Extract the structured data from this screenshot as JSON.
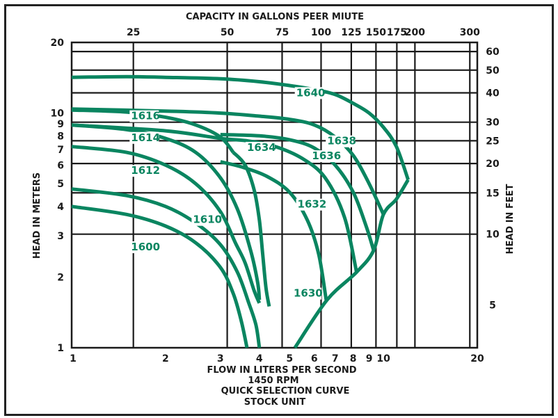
{
  "chart_data": {
    "type": "line",
    "title": "QUICK SELECTION CURVE",
    "subtitle": [
      "1450 RPM",
      "STOCK UNIT"
    ],
    "xlabel": "FLOW IN LITERS PER SECOND",
    "x2label": "CAPACITY IN GALLONS PEER MIUTE",
    "ylabel": "HEAD IN METERS",
    "y2label": "HEAD IN FEET",
    "xscale": "log",
    "yscale": "log",
    "xlim": [
      1,
      20
    ],
    "ylim": [
      1,
      20
    ],
    "grid": true,
    "x_ticks": [
      {
        "v": 1,
        "label": "1"
      },
      {
        "v": 2,
        "label": "2"
      },
      {
        "v": 3,
        "label": "3"
      },
      {
        "v": 4,
        "label": "4"
      },
      {
        "v": 5,
        "label": "5"
      },
      {
        "v": 6,
        "label": "6"
      },
      {
        "v": 7,
        "label": "7"
      },
      {
        "v": 8,
        "label": "8"
      },
      {
        "v": 9,
        "label": "9"
      },
      {
        "v": 10,
        "label": "10"
      },
      {
        "v": 20,
        "label": "20"
      }
    ],
    "x2_ticks_gpm": [
      {
        "v": 25,
        "label": "25"
      },
      {
        "v": 50,
        "label": "50"
      },
      {
        "v": 75,
        "label": "75"
      },
      {
        "v": 100,
        "label": "100"
      },
      {
        "v": 125,
        "label": "125"
      },
      {
        "v": 150,
        "label": "150"
      },
      {
        "v": 175,
        "label": "175"
      },
      {
        "v": 200,
        "label": "200"
      },
      {
        "v": 300,
        "label": "300"
      }
    ],
    "y_ticks": [
      {
        "v": 1,
        "label": "1"
      },
      {
        "v": 2,
        "label": "2"
      },
      {
        "v": 3,
        "label": "3"
      },
      {
        "v": 4,
        "label": "4"
      },
      {
        "v": 5,
        "label": "5"
      },
      {
        "v": 6,
        "label": "6"
      },
      {
        "v": 7,
        "label": "7"
      },
      {
        "v": 8,
        "label": "8"
      },
      {
        "v": 9,
        "label": "9"
      },
      {
        "v": 10,
        "label": "10"
      },
      {
        "v": 20,
        "label": "20"
      }
    ],
    "y2_ticks_ft": [
      {
        "v": 5,
        "label": "5"
      },
      {
        "v": 10,
        "label": "10"
      },
      {
        "v": 15,
        "label": "15"
      },
      {
        "v": 20,
        "label": "20"
      },
      {
        "v": 25,
        "label": "25"
      },
      {
        "v": 30,
        "label": "30"
      },
      {
        "v": 40,
        "label": "40"
      },
      {
        "v": 50,
        "label": "50"
      },
      {
        "v": 60,
        "label": "60"
      }
    ],
    "series": [
      {
        "name": "1600",
        "points": [
          [
            1.0,
            4.0
          ],
          [
            1.5,
            3.7
          ],
          [
            2.0,
            3.3
          ],
          [
            2.5,
            2.8
          ],
          [
            3.0,
            2.2
          ],
          [
            3.3,
            1.7
          ],
          [
            3.5,
            1.3
          ],
          [
            3.65,
            1.0
          ]
        ]
      },
      {
        "name": "1610",
        "points": [
          [
            1.0,
            4.75
          ],
          [
            1.5,
            4.45
          ],
          [
            2.0,
            4.0
          ],
          [
            2.5,
            3.4
          ],
          [
            3.0,
            2.75
          ],
          [
            3.4,
            2.1
          ],
          [
            3.7,
            1.55
          ],
          [
            3.9,
            1.25
          ],
          [
            4.0,
            1.0
          ]
        ]
      },
      {
        "name": "1612",
        "points": [
          [
            1.0,
            7.2
          ],
          [
            1.5,
            6.8
          ],
          [
            2.0,
            6.0
          ],
          [
            2.5,
            5.0
          ],
          [
            3.0,
            3.8
          ],
          [
            3.35,
            2.8
          ],
          [
            3.6,
            2.3
          ],
          [
            3.85,
            1.75
          ],
          [
            4.0,
            1.55
          ]
        ]
      },
      {
        "name": "1614",
        "points": [
          [
            1.0,
            8.9
          ],
          [
            1.5,
            8.5
          ],
          [
            2.0,
            7.8
          ],
          [
            2.5,
            6.8
          ],
          [
            3.0,
            5.3
          ],
          [
            3.4,
            3.9
          ],
          [
            3.75,
            2.6
          ],
          [
            3.95,
            1.9
          ],
          [
            4.0,
            1.6
          ]
        ]
      },
      {
        "name": "1616",
        "points": [
          [
            1.0,
            10.3
          ],
          [
            1.5,
            10.1
          ],
          [
            2.0,
            9.6
          ],
          [
            2.5,
            8.9
          ],
          [
            3.0,
            7.9
          ],
          [
            3.3,
            6.8
          ]
        ]
      },
      {
        "name": "1630",
        "points": [
          [
            3.3,
            6.8
          ],
          [
            3.6,
            6.0
          ],
          [
            3.85,
            4.7
          ],
          [
            4.0,
            3.5
          ],
          [
            4.1,
            2.5
          ],
          [
            4.2,
            1.8
          ],
          [
            4.3,
            1.5
          ]
        ]
      },
      {
        "name": "1632",
        "points": [
          [
            3.0,
            6.2
          ],
          [
            3.5,
            5.9
          ],
          [
            4.2,
            5.4
          ],
          [
            5.0,
            4.6
          ],
          [
            5.7,
            3.5
          ],
          [
            6.2,
            2.5
          ],
          [
            6.55,
            1.6
          ]
        ]
      },
      {
        "name": "1634",
        "points": [
          [
            1.0,
            8.9
          ],
          [
            2.0,
            8.4
          ],
          [
            3.0,
            7.8
          ],
          [
            3.7,
            7.6
          ],
          [
            4.5,
            7.2
          ],
          [
            5.5,
            6.4
          ],
          [
            6.5,
            5.3
          ],
          [
            7.5,
            3.6
          ],
          [
            8.2,
            2.1
          ]
        ]
      },
      {
        "name": "1636",
        "points": [
          [
            3.0,
            8.1
          ],
          [
            4.0,
            8.0
          ],
          [
            5.0,
            7.7
          ],
          [
            6.0,
            7.1
          ],
          [
            7.0,
            6.0
          ],
          [
            8.0,
            4.6
          ],
          [
            8.8,
            3.3
          ],
          [
            9.3,
            2.6
          ]
        ]
      },
      {
        "name": "1638",
        "points": [
          [
            1.0,
            10.4
          ],
          [
            2.0,
            10.2
          ],
          [
            3.0,
            10.0
          ],
          [
            4.0,
            9.7
          ],
          [
            5.0,
            9.4
          ],
          [
            6.0,
            8.9
          ],
          [
            7.0,
            7.9
          ],
          [
            8.0,
            6.6
          ],
          [
            9.0,
            5.0
          ],
          [
            10.0,
            3.7
          ]
        ]
      },
      {
        "name": "1640",
        "points": [
          [
            1.0,
            14.2
          ],
          [
            1.5,
            14.3
          ],
          [
            2.0,
            14.2
          ],
          [
            3.0,
            14.0
          ],
          [
            4.0,
            13.6
          ],
          [
            5.0,
            13.1
          ],
          [
            6.0,
            12.6
          ],
          [
            7.0,
            12.0
          ],
          [
            8.0,
            11.0
          ],
          [
            9.0,
            10.0
          ],
          [
            10.0,
            8.7
          ],
          [
            11.0,
            7.2
          ],
          [
            12.0,
            5.2
          ]
        ]
      },
      {
        "name": "limit-line",
        "points": [
          [
            5.2,
            1.0
          ],
          [
            6.6,
            1.6
          ],
          [
            8.2,
            2.1
          ],
          [
            9.3,
            2.6
          ],
          [
            10.0,
            3.7
          ],
          [
            11.0,
            4.3
          ],
          [
            12.0,
            5.2
          ]
        ]
      }
    ],
    "series_labels": [
      {
        "name": "1616",
        "x": 1.55,
        "y": 9.4
      },
      {
        "name": "1614",
        "x": 1.55,
        "y": 7.6
      },
      {
        "name": "1612",
        "x": 1.55,
        "y": 5.5
      },
      {
        "name": "1610",
        "x": 2.45,
        "y": 3.4
      },
      {
        "name": "1600",
        "x": 1.55,
        "y": 2.6
      },
      {
        "name": "1640",
        "x": 5.25,
        "y": 11.8
      },
      {
        "name": "1638",
        "x": 6.6,
        "y": 7.35
      },
      {
        "name": "1636",
        "x": 5.9,
        "y": 6.35
      },
      {
        "name": "1634",
        "x": 3.65,
        "y": 6.9
      },
      {
        "name": "1632",
        "x": 5.3,
        "y": 3.95
      },
      {
        "name": "1630",
        "x": 5.15,
        "y": 1.65
      }
    ],
    "colors": {
      "curve": "#0a8560",
      "grid": "#1a1a1a",
      "text": "#1a1a1a"
    }
  },
  "labels": {
    "top_title": "CAPACITY IN GALLONS PEER MIUTE",
    "bottom_xlabel": "FLOW IN LITERS PER SECOND",
    "rpm": "1450 RPM",
    "chart_title": "QUICK SELECTION CURVE",
    "unit": "STOCK UNIT",
    "left_ylabel": "HEAD IN METERS",
    "right_ylabel": "HEAD IN FEET"
  }
}
